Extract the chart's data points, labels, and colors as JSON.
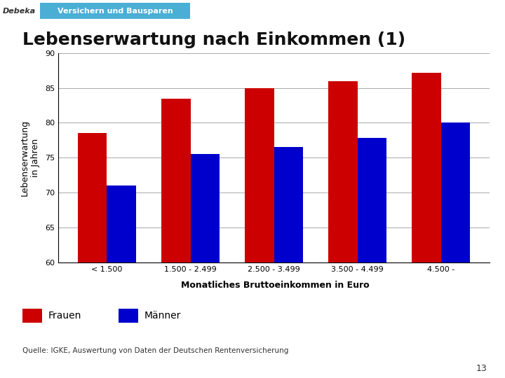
{
  "title": "Lebenserwartung nach Einkommen (1)",
  "ylabel": "Lebenserwartung\nin Jahren",
  "xlabel": "Monatliches Bruttoeinkommen in Euro",
  "categories": [
    "< 1.500",
    "1.500 - 2.499",
    "2.500 - 3.499",
    "3.500 - 4.499",
    "4.500 -"
  ],
  "frauen": [
    78.5,
    83.5,
    85.0,
    86.0,
    87.2
  ],
  "maenner": [
    71.0,
    75.5,
    76.5,
    77.8,
    80.0
  ],
  "frauen_color": "#CC0000",
  "maenner_color": "#0000CC",
  "ylim": [
    60,
    90
  ],
  "yticks": [
    60,
    65,
    70,
    75,
    80,
    85,
    90
  ],
  "bar_width": 0.35,
  "background_color": "#ffffff",
  "plot_bg_color": "#ffffff",
  "grid_color": "#aaaaaa",
  "header_bg": "#c0c0c0",
  "header_blue_bg": "#4baed4",
  "header_text": "Versichern und Bausparen",
  "debeka_text": "Debeka",
  "legend_frauen": "Frauen",
  "legend_maenner": "Männer",
  "source_text": "Quelle: IGKE, Auswertung von Daten der Deutschen Rentenversicherung",
  "page_number": "13",
  "title_fontsize": 18,
  "axis_fontsize": 9,
  "tick_fontsize": 8,
  "legend_fontsize": 10,
  "source_fontsize": 7.5
}
